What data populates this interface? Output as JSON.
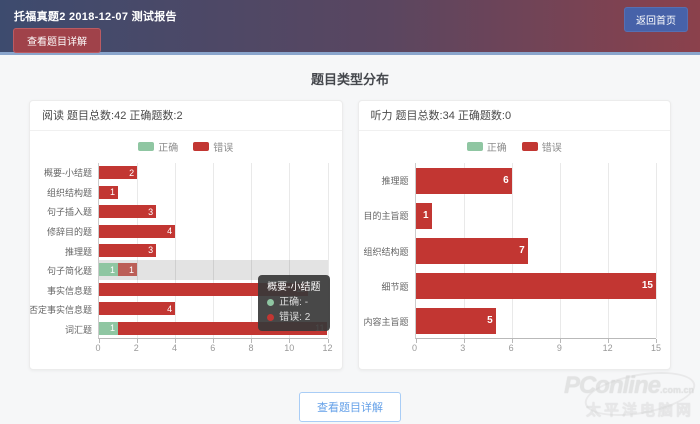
{
  "header": {
    "title": "托福真题2 2018-12-07 测试报告",
    "detail_button_label": "查看题目详解",
    "home_button_label": "返回首页"
  },
  "page": {
    "section_title": "题目类型分布",
    "bottom_button_label": "查看题目详解"
  },
  "colors": {
    "correct_green": "#8fc6a2",
    "wrong_red": "#c23632",
    "header_gradient_left": "#3d4b6e",
    "header_gradient_right": "#8b414c",
    "header_underline_blue": "#8aa5cc",
    "home_button_blue": "#4762a9",
    "detail_button_red": "#a0424a",
    "bottom_button_blue": "#64a0e8"
  },
  "chart_data": [
    {
      "type": "bar",
      "orientation": "horizontal",
      "stacked": true,
      "title": "阅读 题目总数:42 正确题数:2",
      "categories": [
        "概要-小结题",
        "组织结构题",
        "句子插入题",
        "修辞目的题",
        "推理题",
        "句子简化题",
        "事实信息题",
        "否定事实信息题",
        "词汇题"
      ],
      "series": [
        {
          "name": "正确",
          "values": [
            0,
            0,
            0,
            0,
            0,
            1,
            0,
            0,
            1
          ]
        },
        {
          "name": "错误",
          "values": [
            2,
            1,
            3,
            4,
            3,
            1,
            11,
            4,
            11
          ]
        }
      ],
      "xlim": [
        0,
        12
      ],
      "ticks": [
        0,
        2,
        4,
        6,
        8,
        10,
        12
      ],
      "grid": true,
      "legend_position": "top",
      "highlighted_row": 5,
      "tooltip": {
        "title": "概要-小结题",
        "correct_text": "正确: -",
        "wrong_text": "错误: 2"
      }
    },
    {
      "type": "bar",
      "orientation": "horizontal",
      "stacked": true,
      "title": "听力 题目总数:34 正确题数:0",
      "categories": [
        "推理题",
        "目的主旨题",
        "组织结构题",
        "细节题",
        "内容主旨题"
      ],
      "series": [
        {
          "name": "正确",
          "values": [
            0,
            0,
            0,
            0,
            0
          ]
        },
        {
          "name": "错误",
          "values": [
            6,
            1,
            7,
            15,
            5
          ]
        }
      ],
      "xlim": [
        0,
        15
      ],
      "ticks": [
        0,
        3,
        6,
        9,
        12,
        15
      ],
      "grid": true,
      "legend_position": "top"
    }
  ],
  "watermark": {
    "logo": "PConline",
    "domain": ".com.cn",
    "name": "太平洋电脑网"
  }
}
